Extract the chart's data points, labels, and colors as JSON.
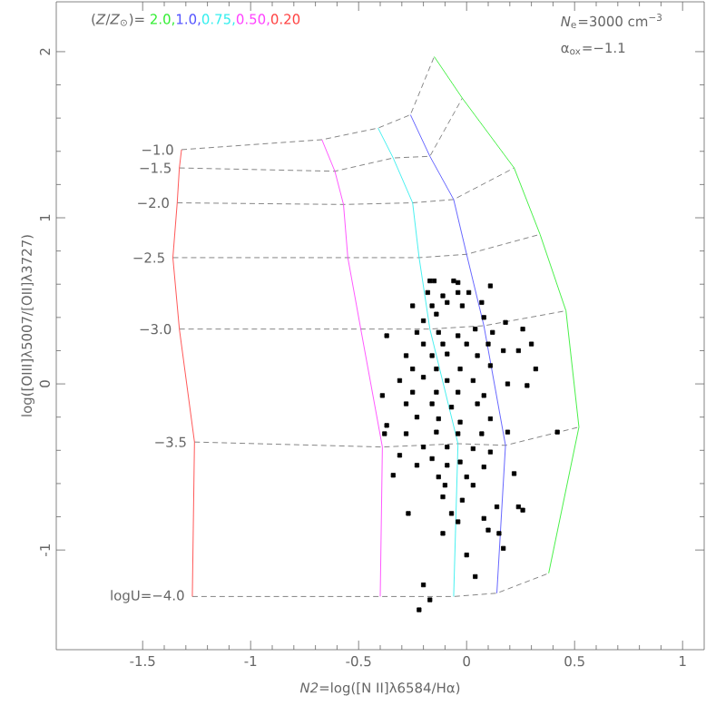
{
  "chart_data": {
    "type": "line",
    "xlabel": "*N2*=log([N II]λ6584/Hα)",
    "ylabel": "log([OIII]λ5007/[OII]λ3727)",
    "legend_title": "(*Z*/*Z*$_{⊙}$)= ",
    "legend": "top left",
    "annotations": [
      "*N*$_{e}$=3000 cm$^{−3}$",
      "α$_{ox}$=−1.1"
    ],
    "xlim": [
      -1.9,
      1.1
    ],
    "ylim": [
      -1.6,
      2.3
    ],
    "xticks": [
      -1.5,
      -1,
      -0.5,
      0,
      0.5,
      1
    ],
    "yticks": [
      -1,
      0,
      1,
      2
    ],
    "series": [
      {
        "name": "2.0,",
        "color": "#33ee33",
        "x": [
          -0.15,
          -0.02,
          0.22,
          0.34,
          0.46,
          0.52,
          0.38
        ],
        "values": [
          1.97,
          1.72,
          1.3,
          0.9,
          0.44,
          -0.26,
          -1.14
        ]
      },
      {
        "name": "1.0,",
        "color": "#5555ff",
        "x": [
          -0.26,
          -0.17,
          -0.06,
          0.0,
          0.08,
          0.18,
          0.14
        ],
        "values": [
          1.62,
          1.37,
          1.11,
          0.78,
          0.35,
          -0.37,
          -1.26
        ]
      },
      {
        "name": "0.75,",
        "color": "#33eeee",
        "x": [
          -0.41,
          -0.34,
          -0.25,
          -0.22,
          -0.17,
          -0.04,
          -0.06
        ],
        "values": [
          1.54,
          1.36,
          1.09,
          0.76,
          0.33,
          -0.36,
          -1.28
        ]
      },
      {
        "name": "0.50,",
        "color": "#ff44ff",
        "x": [
          -0.67,
          -0.61,
          -0.57,
          -0.55,
          -0.49,
          -0.39,
          -0.4
        ],
        "values": [
          1.47,
          1.28,
          1.08,
          0.76,
          0.33,
          -0.38,
          -1.28
        ]
      },
      {
        "name": "0.20",
        "color": "#ff4444",
        "x": [
          -1.32,
          -1.33,
          -1.34,
          -1.36,
          -1.33,
          -1.26,
          -1.27
        ],
        "values": [
          1.41,
          1.3,
          1.09,
          0.76,
          0.33,
          -0.35,
          -1.28
        ]
      },
      {
        "name": "−1.0",
        "color": "#777777",
        "line_style": "dashed",
        "x": [
          -1.32,
          -0.67,
          -0.41,
          -0.26,
          -0.15
        ],
        "values": [
          1.41,
          1.47,
          1.54,
          1.62,
          1.97
        ]
      },
      {
        "name": "−1.5",
        "color": "#777777",
        "line_style": "dashed",
        "x": [
          -1.33,
          -0.61,
          -0.34,
          -0.17,
          -0.02
        ],
        "values": [
          1.3,
          1.28,
          1.36,
          1.37,
          1.72
        ]
      },
      {
        "name": "−2.0",
        "color": "#777777",
        "line_style": "dashed",
        "x": [
          -1.34,
          -0.57,
          -0.25,
          -0.06,
          0.22
        ],
        "values": [
          1.09,
          1.08,
          1.09,
          1.11,
          1.3
        ]
      },
      {
        "name": "−2.5",
        "color": "#777777",
        "line_style": "dashed",
        "x": [
          -1.36,
          -0.55,
          -0.22,
          0.0,
          0.34
        ],
        "values": [
          0.76,
          0.76,
          0.76,
          0.78,
          0.9
        ]
      },
      {
        "name": "−3.0",
        "color": "#777777",
        "line_style": "dashed",
        "x": [
          -1.33,
          -0.49,
          -0.17,
          0.08,
          0.46
        ],
        "values": [
          0.33,
          0.33,
          0.33,
          0.35,
          0.44
        ]
      },
      {
        "name": "−3.5",
        "color": "#777777",
        "line_style": "dashed",
        "x": [
          -1.26,
          -0.39,
          -0.04,
          0.18,
          0.52
        ],
        "values": [
          -0.35,
          -0.38,
          -0.36,
          -0.37,
          -0.26
        ]
      },
      {
        "name": "logU=−4.0",
        "color": "#777777",
        "line_style": "dashed",
        "x": [
          -1.27,
          -0.4,
          -0.06,
          0.14,
          0.38
        ],
        "values": [
          -1.28,
          -1.28,
          -1.28,
          -1.26,
          -1.14
        ]
      },
      {
        "type": "scatter",
        "marker": "square",
        "color": "#000000",
        "x": [
          -0.17,
          -0.15,
          -0.06,
          -0.04,
          0.11,
          -0.18,
          -0.04,
          -0.11,
          0.01,
          -0.25,
          -0.16,
          -0.09,
          -0.02,
          0.07,
          -0.14,
          -0.2,
          0.08,
          0.18,
          -0.37,
          -0.23,
          -0.13,
          -0.04,
          0.04,
          0.12,
          0.26,
          0.3,
          -0.2,
          -0.11,
          0.0,
          0.1,
          0.17,
          0.24,
          -0.28,
          -0.16,
          -0.09,
          0.05,
          -0.25,
          -0.14,
          -0.03,
          0.11,
          0.32,
          -0.31,
          -0.2,
          -0.09,
          0.03,
          0.19,
          0.28,
          -0.39,
          -0.25,
          -0.14,
          -0.04,
          0.08,
          -0.28,
          -0.16,
          -0.07,
          0.05,
          -0.37,
          -0.23,
          -0.13,
          -0.03,
          0.11,
          0.19,
          0.42,
          -0.38,
          -0.28,
          -0.14,
          -0.04,
          0.07,
          -0.2,
          -0.09,
          0.03,
          0.11,
          -0.31,
          -0.16,
          -0.03,
          -0.23,
          -0.09,
          0.08,
          -0.34,
          -0.13,
          0.0,
          0.22,
          -0.1,
          0.03,
          -0.11,
          -0.02,
          0.14,
          0.24,
          0.26,
          -0.27,
          -0.07,
          0.08,
          -0.11,
          -0.04,
          0.1,
          0.15,
          0.17,
          0.0,
          0.04,
          -0.2,
          -0.17,
          -0.22
        ],
        "values": [
          0.62,
          0.62,
          0.62,
          0.61,
          0.59,
          0.55,
          0.55,
          0.53,
          0.55,
          0.47,
          0.47,
          0.49,
          0.47,
          0.49,
          0.42,
          0.38,
          0.4,
          0.37,
          0.29,
          0.31,
          0.31,
          0.29,
          0.33,
          0.31,
          0.33,
          0.24,
          0.24,
          0.24,
          0.24,
          0.24,
          0.2,
          0.2,
          0.17,
          0.17,
          0.18,
          0.17,
          0.09,
          0.09,
          0.09,
          0.11,
          0.09,
          0.02,
          0.04,
          0.02,
          0.02,
          0.0,
          -0.01,
          -0.07,
          -0.05,
          -0.05,
          -0.05,
          -0.07,
          -0.12,
          -0.12,
          -0.14,
          -0.12,
          -0.25,
          -0.2,
          -0.21,
          -0.23,
          -0.21,
          -0.29,
          -0.29,
          -0.3,
          -0.3,
          -0.29,
          -0.3,
          -0.3,
          -0.38,
          -0.38,
          -0.39,
          -0.41,
          -0.43,
          -0.45,
          -0.47,
          -0.49,
          -0.49,
          -0.5,
          -0.55,
          -0.56,
          -0.56,
          -0.54,
          -0.61,
          -0.61,
          -0.68,
          -0.7,
          -0.74,
          -0.74,
          -0.76,
          -0.78,
          -0.78,
          -0.81,
          -0.9,
          -0.83,
          -0.88,
          -0.9,
          -0.99,
          -1.03,
          -1.16,
          -1.21,
          -1.3,
          -1.36
        ]
      }
    ]
  }
}
